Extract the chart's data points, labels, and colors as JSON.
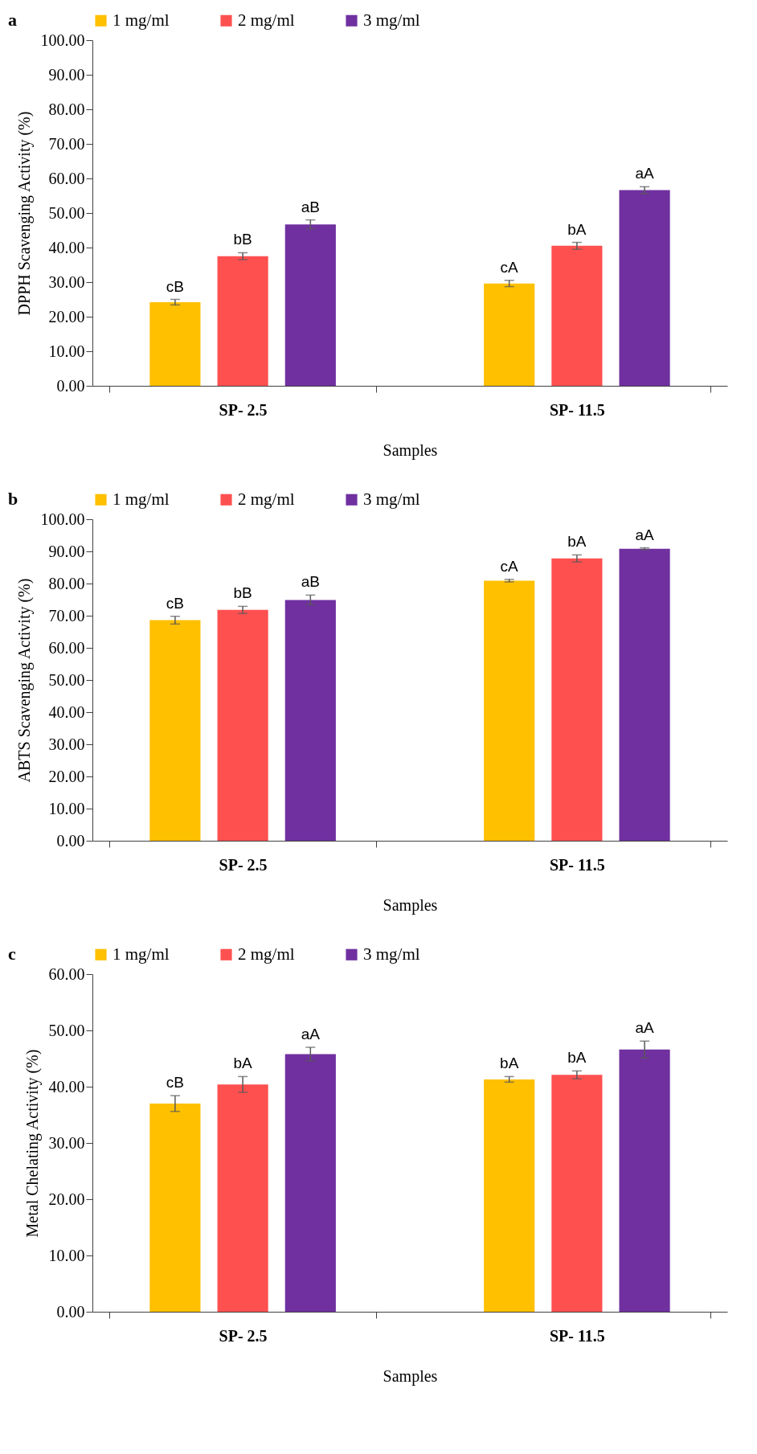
{
  "chart_data": [
    {
      "type": "bar",
      "title": "a",
      "xlabel": "Samples",
      "ylabel": "DPPH Scavenging Activity (%)",
      "categories": [
        "SP- 2.5",
        "SP- 11.5"
      ],
      "legend": "top",
      "ylim": [
        0,
        100
      ],
      "yticks": [
        {
          "value": 0,
          "label": "0.00"
        },
        {
          "value": 10,
          "label": "10.00"
        },
        {
          "value": 20,
          "label": "20.00"
        },
        {
          "value": 30,
          "label": "30.00"
        },
        {
          "value": 40,
          "label": "40.00"
        },
        {
          "value": 50,
          "label": "50.00"
        },
        {
          "value": 60,
          "label": "60.00"
        },
        {
          "value": 70,
          "label": "70.00"
        },
        {
          "value": 80,
          "label": "80.00"
        },
        {
          "value": 90,
          "label": "90.00"
        },
        {
          "value": 100,
          "label": "100.00"
        }
      ],
      "series": [
        {
          "name": "1 mg/ml",
          "color": "#ffc000",
          "values": [
            24.2,
            29.6
          ],
          "errors": [
            0.8,
            0.9
          ],
          "value_labels": [
            "cB",
            "cA"
          ]
        },
        {
          "name": "2 mg/ml",
          "color": "#ff5050",
          "values": [
            37.5,
            40.5
          ],
          "errors": [
            1.0,
            1.0
          ],
          "value_labels": [
            "bB",
            "bA"
          ]
        },
        {
          "name": "3 mg/ml",
          "color": "#7030a0",
          "values": [
            46.7,
            56.6
          ],
          "errors": [
            1.3,
            1.0
          ],
          "value_labels": [
            "aB",
            "aA"
          ]
        }
      ]
    },
    {
      "type": "bar",
      "title": "b",
      "xlabel": "Samples",
      "ylabel": "ABTS Scavenging Activity (%)",
      "categories": [
        "SP- 2.5",
        "SP- 11.5"
      ],
      "legend": "top",
      "ylim": [
        0,
        100
      ],
      "yticks": [
        {
          "value": 0,
          "label": "0.00"
        },
        {
          "value": 10,
          "label": "10.00"
        },
        {
          "value": 20,
          "label": "20.00"
        },
        {
          "value": 30,
          "label": "30.00"
        },
        {
          "value": 40,
          "label": "40.00"
        },
        {
          "value": 50,
          "label": "50.00"
        },
        {
          "value": 60,
          "label": "60.00"
        },
        {
          "value": 70,
          "label": "70.00"
        },
        {
          "value": 80,
          "label": "80.00"
        },
        {
          "value": 90,
          "label": "90.00"
        },
        {
          "value": 100,
          "label": "100.00"
        }
      ],
      "series": [
        {
          "name": "1 mg/ml",
          "color": "#ffc000",
          "values": [
            68.6,
            80.9
          ],
          "errors": [
            1.2,
            0.4
          ],
          "value_labels": [
            "cB",
            "cA"
          ]
        },
        {
          "name": "2 mg/ml",
          "color": "#ff5050",
          "values": [
            71.8,
            87.8
          ],
          "errors": [
            1.1,
            1.1
          ],
          "value_labels": [
            "bB",
            "bA"
          ]
        },
        {
          "name": "3 mg/ml",
          "color": "#7030a0",
          "values": [
            74.9,
            90.8
          ],
          "errors": [
            1.5,
            0.3
          ],
          "value_labels": [
            "aB",
            "aA"
          ]
        }
      ]
    },
    {
      "type": "bar",
      "title": "c",
      "xlabel": "Samples",
      "ylabel": "Metal Chelating Activity (%)",
      "categories": [
        "SP- 2.5",
        "SP- 11.5"
      ],
      "legend": "top",
      "ylim": [
        0,
        60
      ],
      "yticks": [
        {
          "value": 0,
          "label": "0.00"
        },
        {
          "value": 10,
          "label": "10.00"
        },
        {
          "value": 20,
          "label": "20.00"
        },
        {
          "value": 30,
          "label": "30.00"
        },
        {
          "value": 40,
          "label": "40.00"
        },
        {
          "value": 50,
          "label": "50.00"
        },
        {
          "value": 60,
          "label": "60.00"
        }
      ],
      "series": [
        {
          "name": "1 mg/ml",
          "color": "#ffc000",
          "values": [
            37.0,
            41.3
          ],
          "errors": [
            1.4,
            0.5
          ],
          "value_labels": [
            "cB",
            "bA"
          ]
        },
        {
          "name": "2 mg/ml",
          "color": "#ff5050",
          "values": [
            40.4,
            42.1
          ],
          "errors": [
            1.4,
            0.7
          ],
          "value_labels": [
            "bA",
            "bA"
          ]
        },
        {
          "name": "3 mg/ml",
          "color": "#7030a0",
          "values": [
            45.8,
            46.6
          ],
          "errors": [
            1.2,
            1.5
          ],
          "value_labels": [
            "aA",
            "aA"
          ]
        }
      ]
    }
  ]
}
